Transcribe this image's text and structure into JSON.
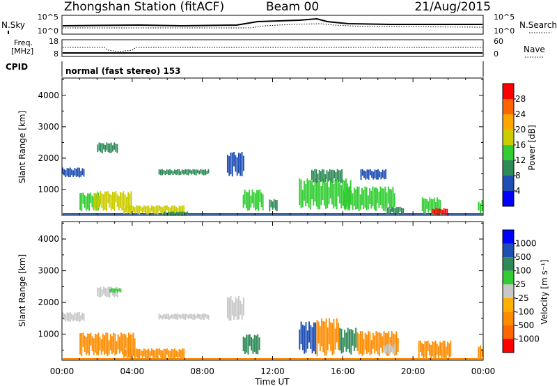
{
  "header": {
    "station": "Zhongshan Station (fitACF)",
    "beam": "Beam 00",
    "date": "21/Aug/2015"
  },
  "top_panels": {
    "nsky": {
      "label": "N.Sky",
      "ticks": [
        "10^5",
        "10^0"
      ]
    },
    "nsearch": {
      "label": "N.Search",
      "ticks": [
        "10^5",
        "10^0"
      ]
    },
    "freq": {
      "label_line1": "Freq.",
      "label_line2": "[MHz]",
      "ticks": [
        "18",
        "8"
      ]
    },
    "nave": {
      "label": "Nave",
      "ticks": [
        "60",
        "0"
      ]
    },
    "cpid": {
      "label": "CPID",
      "mode": "normal (fast stereo) 153"
    }
  },
  "colors": {
    "power": [
      "#0000ff",
      "#1f4fb4",
      "#2e8b57",
      "#32cd32",
      "#cccc00",
      "#ffa500",
      "#ff6600",
      "#ff0000"
    ],
    "velocity": [
      "#ff0000",
      "#ff6600",
      "#ff8c00",
      "#ffb000",
      "#c8c8c8",
      "#32cd32",
      "#2e8b57",
      "#1f4fb4",
      "#0000ff"
    ]
  },
  "chart_data": [
    {
      "type": "heatmap",
      "panel": "power",
      "ylabel": "Slant Range [km]",
      "xlabel": "",
      "ylim": [
        180,
        4550
      ],
      "yticks": [
        1000,
        2000,
        3000,
        4000
      ],
      "xlim": [
        0,
        24
      ],
      "xticks": [
        "00:00",
        "04:00",
        "08:00",
        "12:00",
        "16:00",
        "20:00",
        "00:00"
      ],
      "colorbar": {
        "label": "Power [dB]",
        "ticks": [
          "4",
          "8",
          "12",
          "16",
          "20",
          "24",
          "28"
        ],
        "range": [
          0,
          32
        ]
      },
      "regions": [
        {
          "t0": 0.0,
          "t1": 1.3,
          "r0": 1380,
          "r1": 1700,
          "value": 5
        },
        {
          "t0": 1.0,
          "t1": 2.2,
          "r0": 300,
          "r1": 900,
          "value": 12
        },
        {
          "t0": 1.8,
          "t1": 4.0,
          "r0": 300,
          "r1": 950,
          "value": 18
        },
        {
          "t0": 2.0,
          "t1": 3.2,
          "r0": 2150,
          "r1": 2500,
          "value": 9
        },
        {
          "t0": 3.5,
          "t1": 7.0,
          "r0": 200,
          "r1": 500,
          "value": 17
        },
        {
          "t0": 5.8,
          "t1": 7.2,
          "r0": 180,
          "r1": 300,
          "value": 10
        },
        {
          "t0": 5.5,
          "t1": 8.4,
          "r0": 1450,
          "r1": 1650,
          "value": 8
        },
        {
          "t0": 9.4,
          "t1": 10.4,
          "r0": 1400,
          "r1": 2200,
          "value": 6
        },
        {
          "t0": 10.3,
          "t1": 11.5,
          "r0": 300,
          "r1": 1000,
          "value": 13
        },
        {
          "t0": 11.8,
          "t1": 12.3,
          "r0": 300,
          "r1": 700,
          "value": 9
        },
        {
          "t0": 13.5,
          "t1": 16.5,
          "r0": 350,
          "r1": 1350,
          "value": 14
        },
        {
          "t0": 14.2,
          "t1": 16.0,
          "r0": 1200,
          "r1": 1650,
          "value": 8
        },
        {
          "t0": 16.0,
          "t1": 19.0,
          "r0": 300,
          "r1": 1100,
          "value": 12
        },
        {
          "t0": 17.0,
          "t1": 18.5,
          "r0": 1300,
          "r1": 1650,
          "value": 6
        },
        {
          "t0": 18.5,
          "t1": 19.5,
          "r0": 200,
          "r1": 450,
          "value": 10
        },
        {
          "t0": 20.5,
          "t1": 21.6,
          "r0": 180,
          "r1": 750,
          "value": 15
        },
        {
          "t0": 21.1,
          "t1": 22.0,
          "r0": 180,
          "r1": 400,
          "value": 29
        },
        {
          "t0": 23.7,
          "t1": 24.0,
          "r0": 200,
          "r1": 700,
          "value": 14
        }
      ]
    },
    {
      "type": "heatmap",
      "panel": "velocity",
      "ylabel": "Slant Range [km]",
      "xlabel": "Time UT",
      "ylim": [
        180,
        4550
      ],
      "yticks": [
        1000,
        2000,
        3000,
        4000
      ],
      "xlim": [
        0,
        24
      ],
      "xticks": [
        "00:00",
        "04:00",
        "08:00",
        "12:00",
        "16:00",
        "20:00",
        "00:00"
      ],
      "colorbar": {
        "label": "Velocity [m s⁻¹]",
        "ticks": [
          "-1000",
          "-500",
          "-100",
          "-25",
          "25",
          "100",
          "500",
          "1000"
        ]
      },
      "regions": [
        {
          "t0": 0.0,
          "t1": 1.3,
          "r0": 1380,
          "r1": 1700,
          "value": 0
        },
        {
          "t0": 1.0,
          "t1": 4.2,
          "r0": 300,
          "r1": 1050,
          "value": -300
        },
        {
          "t0": 2.0,
          "t1": 3.2,
          "r0": 2150,
          "r1": 2500,
          "value": 0
        },
        {
          "t0": 2.7,
          "t1": 3.4,
          "r0": 2300,
          "r1": 2450,
          "value": 60
        },
        {
          "t0": 3.5,
          "t1": 7.0,
          "r0": 200,
          "r1": 550,
          "value": -300
        },
        {
          "t0": 5.5,
          "t1": 8.4,
          "r0": 1450,
          "r1": 1650,
          "value": 5
        },
        {
          "t0": 9.4,
          "t1": 10.4,
          "r0": 1400,
          "r1": 2200,
          "value": 0
        },
        {
          "t0": 10.3,
          "t1": 11.3,
          "r0": 350,
          "r1": 1000,
          "value": 300
        },
        {
          "t0": 13.5,
          "t1": 14.5,
          "r0": 350,
          "r1": 1400,
          "value": 700
        },
        {
          "t0": 14.5,
          "t1": 15.8,
          "r0": 300,
          "r1": 1500,
          "value": -300
        },
        {
          "t0": 15.8,
          "t1": 16.8,
          "r0": 350,
          "r1": 1200,
          "value": 400
        },
        {
          "t0": 16.8,
          "t1": 19.2,
          "r0": 300,
          "r1": 1100,
          "value": -300
        },
        {
          "t0": 18.3,
          "t1": 19.0,
          "r0": 350,
          "r1": 700,
          "value": 10
        },
        {
          "t0": 20.3,
          "t1": 22.2,
          "r0": 200,
          "r1": 800,
          "value": -300
        },
        {
          "t0": 23.7,
          "t1": 24.0,
          "r0": 200,
          "r1": 650,
          "value": -300
        }
      ]
    }
  ]
}
